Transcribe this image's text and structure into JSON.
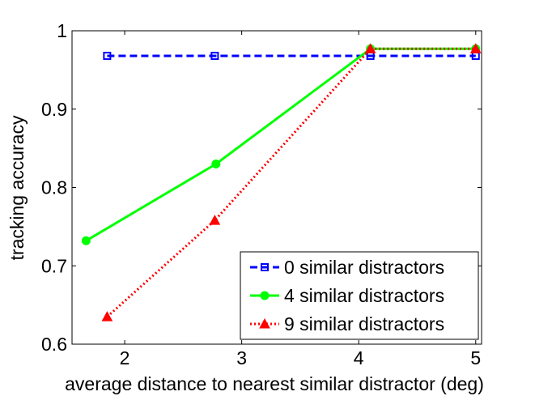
{
  "chart_data": {
    "type": "line",
    "xlabel": "average distance to nearest similar distractor (deg)",
    "ylabel": "tracking accuracy",
    "xlim": [
      1.55,
      5.05
    ],
    "ylim": [
      0.6,
      1.0
    ],
    "x_ticks": [
      2,
      3,
      4,
      5
    ],
    "x_tick_labels": [
      "2",
      "3",
      "4",
      "5"
    ],
    "y_ticks": [
      0.6,
      0.7,
      0.8,
      0.9,
      1.0
    ],
    "y_tick_labels": [
      "0.6",
      "0.7",
      "0.8",
      "0.9",
      "1"
    ],
    "grid": false,
    "legend_position": "bottom-right",
    "series": [
      {
        "name": "0 similar distractors",
        "color": "#0000ff",
        "line_style": "dashed",
        "marker": "square-open",
        "x": [
          1.85,
          2.77,
          4.1,
          5.0
        ],
        "y": [
          0.968,
          0.968,
          0.968,
          0.968
        ]
      },
      {
        "name": "4 similar distractors",
        "color": "#00ff00",
        "line_style": "solid",
        "marker": "circle-filled",
        "x": [
          1.67,
          2.78,
          4.1,
          5.0
        ],
        "y": [
          0.732,
          0.83,
          0.977,
          0.977
        ]
      },
      {
        "name": "9 similar distractors",
        "color": "#ff0000",
        "line_style": "dotted",
        "marker": "triangle-filled",
        "x": [
          1.85,
          2.77,
          4.1,
          5.0
        ],
        "y": [
          0.635,
          0.758,
          0.977,
          0.977
        ]
      }
    ]
  }
}
